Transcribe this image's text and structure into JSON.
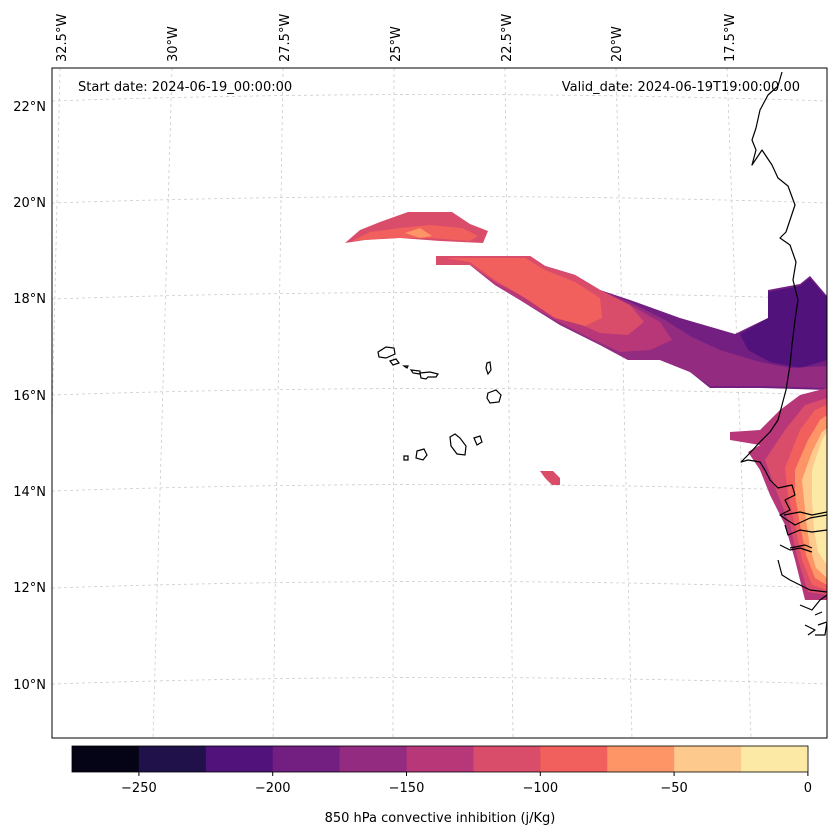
{
  "header": {
    "start_label": "Start date: 2024-06-19_00:00:00",
    "valid_label": "Valid_date: 2024-06-19T19:00:00.00"
  },
  "axes": {
    "lon_labels": [
      "32.5°W",
      "30°W",
      "27.5°W",
      "25°W",
      "22.5°W",
      "20°W",
      "17.5°W"
    ],
    "lat_labels": [
      "22°N",
      "20°N",
      "18°N",
      "16°N",
      "14°N",
      "12°N",
      "10°N"
    ]
  },
  "colorbar": {
    "label": "850 hPa convective inhibition (j/Kg)",
    "tick_labels": [
      "−250",
      "−200",
      "−150",
      "−100",
      "−50",
      "0"
    ],
    "colors": [
      "#050416",
      "#20114b",
      "#51127c",
      "#721f81",
      "#932b80",
      "#b73779",
      "#d94d6b",
      "#f1605d",
      "#fd9567",
      "#fec98d",
      "#fde9a6"
    ]
  },
  "legend_range": {
    "min": -275,
    "max": 0,
    "step": 25
  }
}
